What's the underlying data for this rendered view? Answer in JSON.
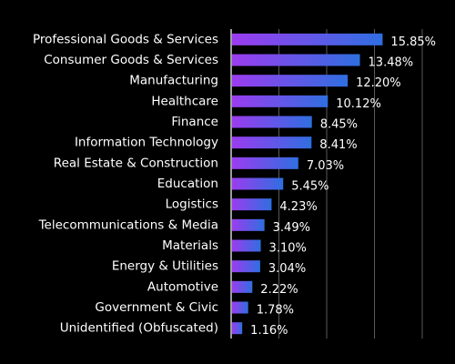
{
  "chart_data": {
    "type": "bar",
    "orientation": "horizontal",
    "categories": [
      "Professional Goods & Services",
      "Consumer Goods & Services",
      "Manufacturing",
      "Healthcare",
      "Finance",
      "Information Technology",
      "Real Estate & Construction",
      "Education",
      "Logistics",
      "Telecommunications & Media",
      "Materials",
      "Energy & Utilities",
      "Automotive",
      "Government & Civic",
      "Unidentified (Obfuscated)"
    ],
    "values": [
      15.85,
      13.48,
      12.2,
      10.12,
      8.45,
      8.41,
      7.03,
      5.45,
      4.23,
      3.49,
      3.1,
      3.04,
      2.22,
      1.78,
      1.16
    ],
    "value_labels": [
      "15.85%",
      "13.48%",
      "12.20%",
      "10.12%",
      "8.45%",
      "8.41%",
      "7.03%",
      "5.45%",
      "4.23%",
      "3.49%",
      "3.10%",
      "3.04%",
      "2.22%",
      "1.78%",
      "1.16%"
    ],
    "title": "",
    "xlabel": "",
    "ylabel": "",
    "xlim": [
      0,
      20
    ],
    "gridlines_at": [
      5,
      10,
      15,
      20
    ],
    "grid": true,
    "legend": "none",
    "colors": {
      "background": "#000000",
      "bar_gradient_start": "#9b3cf0",
      "bar_gradient_end": "#2f6fe0",
      "text": "#ffffff",
      "grid": "#5a5a5a",
      "axis": "#d0d0d0"
    }
  }
}
